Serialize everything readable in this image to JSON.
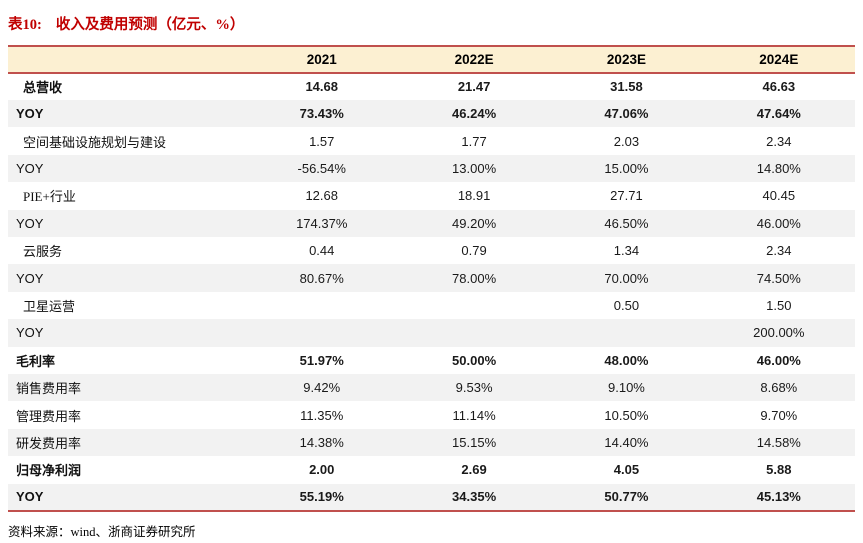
{
  "title": {
    "tag": "表10:",
    "text": "收入及费用预测（亿元、%）"
  },
  "table": {
    "columns": [
      "2021",
      "2022E",
      "2023E",
      "2024E"
    ],
    "rows": [
      {
        "label": "总营收",
        "indent": true,
        "bold": true,
        "values": [
          "14.68",
          "21.47",
          "31.58",
          "46.63"
        ]
      },
      {
        "label": "YOY",
        "indent": false,
        "bold": true,
        "values": [
          "73.43%",
          "46.24%",
          "47.06%",
          "47.64%"
        ]
      },
      {
        "label": "空间基础设施规划与建设",
        "indent": true,
        "bold": false,
        "values": [
          "1.57",
          "1.77",
          "2.03",
          "2.34"
        ]
      },
      {
        "label": "YOY",
        "indent": false,
        "bold": false,
        "values": [
          "-56.54%",
          "13.00%",
          "15.00%",
          "14.80%"
        ]
      },
      {
        "label": "PIE+行业",
        "indent": true,
        "bold": false,
        "values": [
          "12.68",
          "18.91",
          "27.71",
          "40.45"
        ]
      },
      {
        "label": "YOY",
        "indent": false,
        "bold": false,
        "values": [
          "174.37%",
          "49.20%",
          "46.50%",
          "46.00%"
        ]
      },
      {
        "label": "云服务",
        "indent": true,
        "bold": false,
        "values": [
          "0.44",
          "0.79",
          "1.34",
          "2.34"
        ]
      },
      {
        "label": "YOY",
        "indent": false,
        "bold": false,
        "values": [
          "80.67%",
          "78.00%",
          "70.00%",
          "74.50%"
        ]
      },
      {
        "label": "卫星运营",
        "indent": true,
        "bold": false,
        "values": [
          "",
          "",
          "0.50",
          "1.50"
        ]
      },
      {
        "label": "YOY",
        "indent": false,
        "bold": false,
        "values": [
          "",
          "",
          "",
          "200.00%"
        ]
      },
      {
        "label": "毛利率",
        "indent": false,
        "bold": true,
        "values": [
          "51.97%",
          "50.00%",
          "48.00%",
          "46.00%"
        ]
      },
      {
        "label": "销售费用率",
        "indent": false,
        "bold": false,
        "values": [
          "9.42%",
          "9.53%",
          "9.10%",
          "8.68%"
        ]
      },
      {
        "label": "管理费用率",
        "indent": false,
        "bold": false,
        "values": [
          "11.35%",
          "11.14%",
          "10.50%",
          "9.70%"
        ]
      },
      {
        "label": "研发费用率",
        "indent": false,
        "bold": false,
        "values": [
          "14.38%",
          "15.15%",
          "14.40%",
          "14.58%"
        ]
      },
      {
        "label": "归母净利润",
        "indent": false,
        "bold": true,
        "values": [
          "2.00",
          "2.69",
          "4.05",
          "5.88"
        ]
      },
      {
        "label": "YOY",
        "indent": false,
        "bold": true,
        "values": [
          "55.19%",
          "34.35%",
          "50.77%",
          "45.13%"
        ]
      }
    ]
  },
  "footer": {
    "source": "资料来源：wind、浙商证券研究所"
  },
  "colors": {
    "title_red": "#c00000",
    "border_red": "#c0504d",
    "header_bg": "#fcf0d2",
    "stripe_gray": "#f2f2f2"
  }
}
